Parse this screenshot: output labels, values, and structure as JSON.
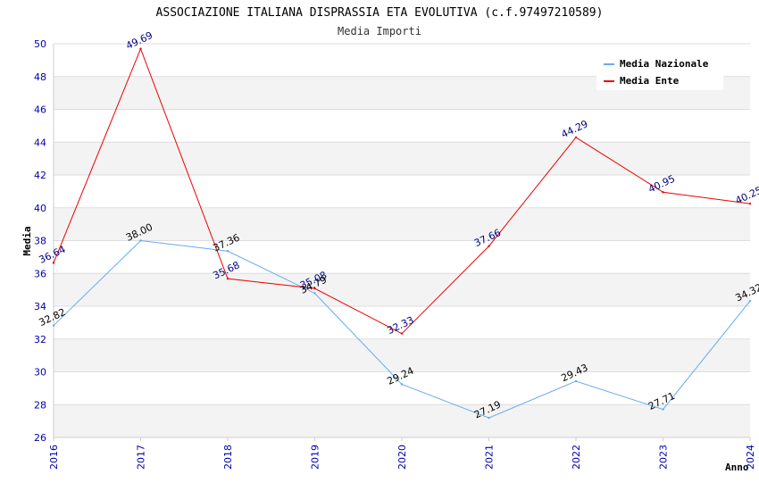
{
  "chart_data": {
    "type": "line",
    "title": "ASSOCIAZIONE ITALIANA DISPRASSIA ETA EVOLUTIVA (c.f.97497210589)",
    "subtitle": "Media Importi",
    "xlabel": "Anno",
    "ylabel": "Media",
    "x": [
      "2016",
      "2017",
      "2018",
      "2019",
      "2020",
      "2021",
      "2022",
      "2023",
      "2024"
    ],
    "ylim": [
      26,
      50
    ],
    "yticks": [
      "26",
      "28",
      "30",
      "32",
      "34",
      "36",
      "38",
      "40",
      "42",
      "44",
      "46",
      "48",
      "50"
    ],
    "grid": true,
    "legend_position": "top-right",
    "series": [
      {
        "name": "Media Nazionale",
        "color": "#66aaee",
        "label_color": "#000000",
        "values": [
          32.82,
          38.0,
          37.36,
          34.79,
          29.24,
          27.19,
          29.43,
          27.71,
          34.32
        ],
        "labels": [
          "32.82",
          "38.00",
          "37.36",
          "34.79",
          "29.24",
          "27.19",
          "29.43",
          "27.71",
          "34.32"
        ]
      },
      {
        "name": "Media Ente",
        "color": "#ee0000",
        "label_color": "#000080",
        "values": [
          36.64,
          49.69,
          35.68,
          35.08,
          32.33,
          37.66,
          44.29,
          40.95,
          40.25
        ],
        "labels": [
          "36.64",
          "49.69",
          "35.68",
          "35.08",
          "32.33",
          "37.66",
          "44.29",
          "40.95",
          "40.25"
        ]
      }
    ]
  }
}
